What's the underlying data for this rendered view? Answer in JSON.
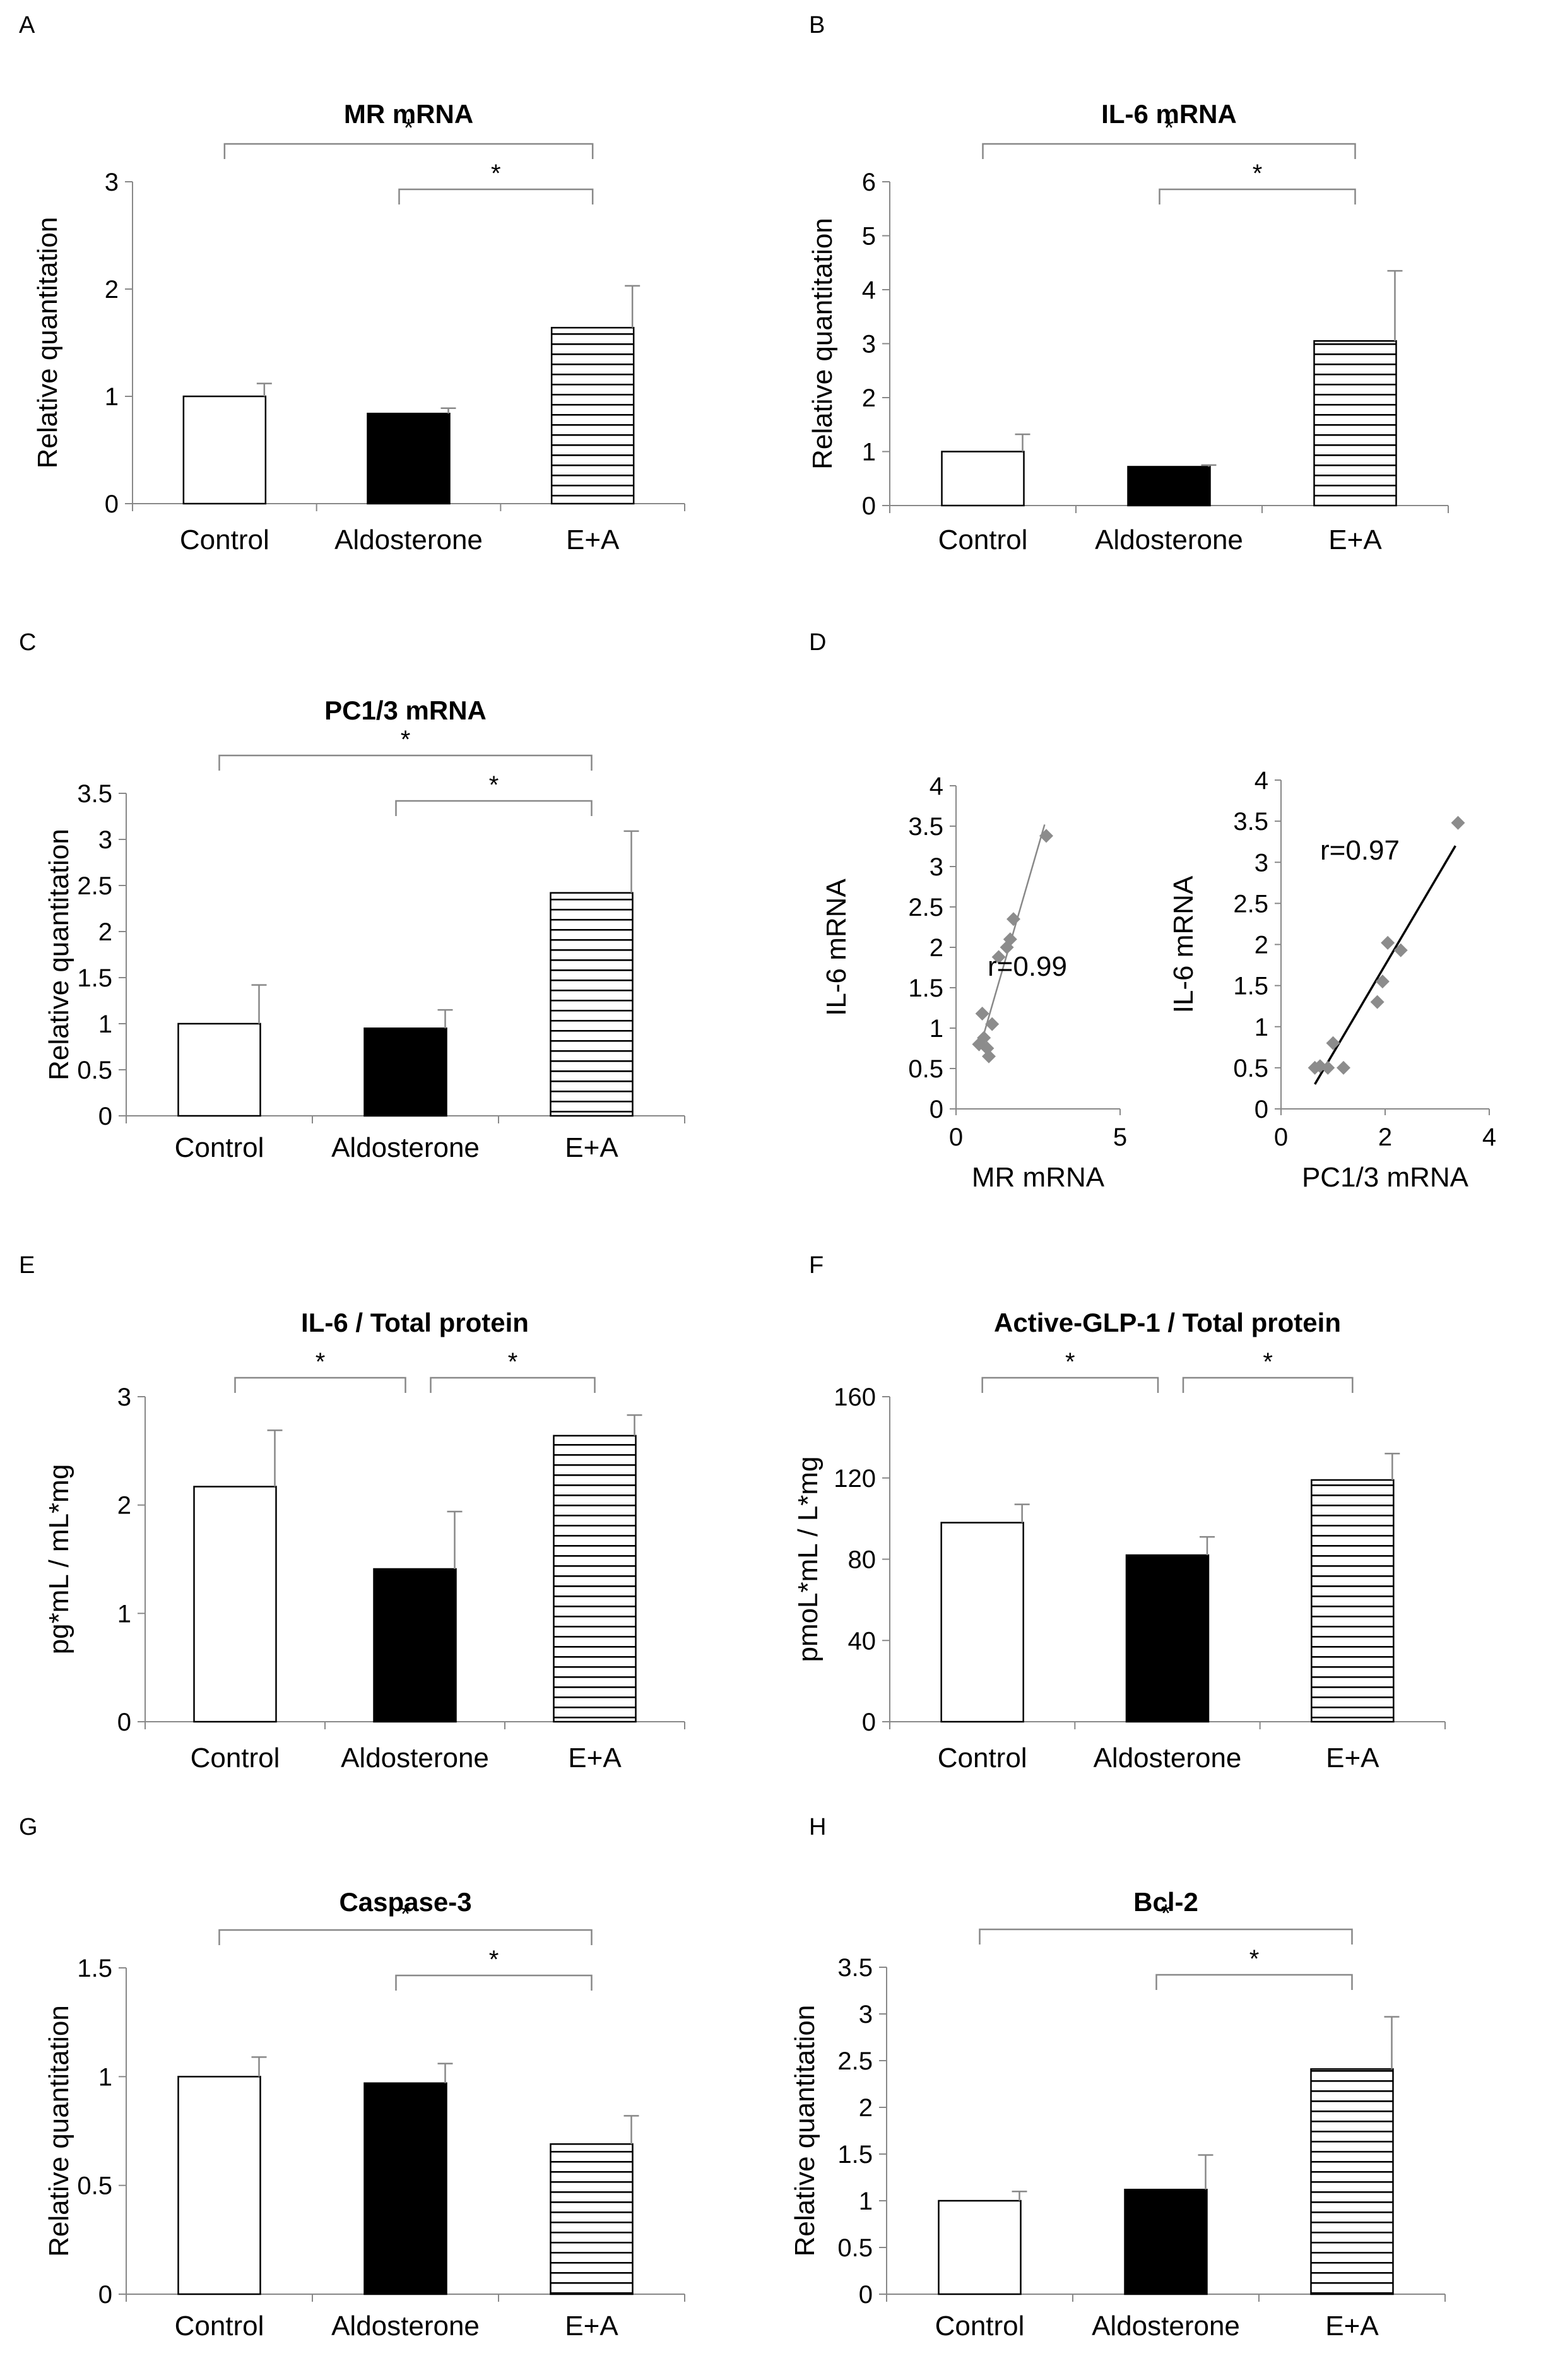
{
  "figure": {
    "panel_letters": [
      "A",
      "B",
      "C",
      "D",
      "E",
      "F",
      "G",
      "H"
    ]
  },
  "colors": {
    "control": "#ffffff",
    "aldosterone": "#000000",
    "ea_stripe": "#000000",
    "axis": "#888888",
    "marker": "#8c8c8c",
    "fit_line_d1": "#888888",
    "fit_line_d2": "#000000"
  },
  "chart_data": [
    {
      "id": "A",
      "type": "bar",
      "title": "MR mRNA",
      "ylabel": "Relative quantitation",
      "categories": [
        "Control",
        "Aldosterone",
        "E+A"
      ],
      "values": [
        1.0,
        0.84,
        1.64
      ],
      "errors": [
        0.12,
        0.05,
        0.39
      ],
      "ylim": [
        0,
        3
      ],
      "yticks": [
        0,
        1,
        2,
        3
      ],
      "ytick_labels": [
        "0",
        "1",
        "2",
        "3"
      ],
      "significance": [
        {
          "from": 0,
          "to": 2,
          "label": "*"
        },
        {
          "from": 1,
          "to": 2,
          "label": "*"
        }
      ]
    },
    {
      "id": "B",
      "type": "bar",
      "title": "IL-6 mRNA",
      "ylabel": "Relative quantitation",
      "categories": [
        "Control",
        "Aldosterone",
        "E+A"
      ],
      "values": [
        1.0,
        0.72,
        3.05
      ],
      "errors": [
        0.32,
        0.03,
        1.3
      ],
      "ylim": [
        0,
        6
      ],
      "yticks": [
        0,
        1,
        2,
        3,
        4,
        5,
        6
      ],
      "ytick_labels": [
        "0",
        "1",
        "2",
        "3",
        "4",
        "5",
        "6"
      ],
      "significance": [
        {
          "from": 0,
          "to": 2,
          "label": "*"
        },
        {
          "from": 1,
          "to": 2,
          "label": "*"
        }
      ]
    },
    {
      "id": "C",
      "type": "bar",
      "title": "PC1/3 mRNA",
      "ylabel": "Relative quantitation",
      "categories": [
        "Control",
        "Aldosterone",
        "E+A"
      ],
      "values": [
        1.0,
        0.95,
        2.42
      ],
      "errors": [
        0.42,
        0.2,
        0.67
      ],
      "ylim": [
        0,
        3.5
      ],
      "yticks": [
        0,
        0.5,
        1,
        1.5,
        2,
        2.5,
        3,
        3.5
      ],
      "ytick_labels": [
        "0",
        "0.5",
        "1",
        "1.5",
        "2",
        "2.5",
        "3",
        "3.5"
      ],
      "significance": [
        {
          "from": 0,
          "to": 2,
          "label": "*"
        },
        {
          "from": 1,
          "to": 2,
          "label": "*"
        }
      ]
    },
    {
      "id": "D1",
      "type": "scatter",
      "xlabel": "MR mRNA",
      "ylabel": "IL-6 mRNA",
      "xlim": [
        0,
        5
      ],
      "ylim": [
        0,
        4
      ],
      "xticks": [
        0,
        5
      ],
      "xtick_labels": [
        "0",
        "5"
      ],
      "yticks": [
        0,
        0.5,
        1,
        1.5,
        2,
        2.5,
        3,
        3.5,
        4
      ],
      "ytick_labels": [
        "0",
        "0.5",
        "1",
        "1.5",
        "2",
        "2.5",
        "3",
        "3.5",
        "4"
      ],
      "points": [
        [
          0.7,
          0.8
        ],
        [
          0.8,
          1.18
        ],
        [
          0.85,
          0.88
        ],
        [
          0.95,
          0.75
        ],
        [
          1.0,
          0.65
        ],
        [
          1.1,
          1.05
        ],
        [
          1.3,
          1.88
        ],
        [
          1.55,
          2.0
        ],
        [
          1.65,
          2.1
        ],
        [
          1.75,
          2.35
        ],
        [
          2.75,
          3.38
        ]
      ],
      "fit_line": [
        [
          0.7,
          0.72
        ],
        [
          2.7,
          3.52
        ]
      ],
      "annotation": "r=0.99"
    },
    {
      "id": "D2",
      "type": "scatter",
      "xlabel": "PC1/3 mRNA",
      "ylabel": "IL-6 mRNA",
      "xlim": [
        0,
        4
      ],
      "ylim": [
        0,
        4
      ],
      "xticks": [
        0,
        2,
        4
      ],
      "xtick_labels": [
        "0",
        "2",
        "4"
      ],
      "yticks": [
        0,
        0.5,
        1,
        1.5,
        2,
        2.5,
        3,
        3.5,
        4
      ],
      "ytick_labels": [
        "0",
        "0.5",
        "1",
        "1.5",
        "2",
        "2.5",
        "3",
        "3.5",
        "4"
      ],
      "points": [
        [
          0.65,
          0.5
        ],
        [
          0.75,
          0.52
        ],
        [
          0.9,
          0.5
        ],
        [
          1.0,
          0.8
        ],
        [
          1.2,
          0.5
        ],
        [
          1.85,
          1.3
        ],
        [
          1.95,
          1.55
        ],
        [
          2.05,
          2.02
        ],
        [
          2.3,
          1.93
        ],
        [
          3.4,
          3.48
        ]
      ],
      "fit_line": [
        [
          0.65,
          0.3
        ],
        [
          3.35,
          3.2
        ]
      ],
      "annotation": "r=0.97"
    },
    {
      "id": "E",
      "type": "bar",
      "title": "IL-6 / Total protein",
      "ylabel": "pg*mL / mL*mg",
      "categories": [
        "Control",
        "Aldosterone",
        "E+A"
      ],
      "values": [
        2.17,
        1.41,
        2.64
      ],
      "errors": [
        0.52,
        0.53,
        0.19
      ],
      "ylim": [
        0,
        3
      ],
      "yticks": [
        0,
        1,
        2,
        3
      ],
      "ytick_labels": [
        "0",
        "1",
        "2",
        "3"
      ],
      "significance": [
        {
          "from": 0,
          "to": 1,
          "label": "*"
        },
        {
          "from": 1,
          "to": 2,
          "label": "*"
        }
      ]
    },
    {
      "id": "F",
      "type": "bar",
      "title": "Active-GLP-1  / Total protein",
      "ylabel": "pmoL*mL / L*mg",
      "categories": [
        "Control",
        "Aldosterone",
        "E+A"
      ],
      "values": [
        98,
        82,
        119
      ],
      "errors": [
        9,
        9,
        13
      ],
      "ylim": [
        0,
        160
      ],
      "yticks": [
        0,
        40,
        80,
        120,
        160
      ],
      "ytick_labels": [
        "0",
        "40",
        "80",
        "120",
        "160"
      ],
      "significance": [
        {
          "from": 0,
          "to": 1,
          "label": "*"
        },
        {
          "from": 1,
          "to": 2,
          "label": "*"
        }
      ]
    },
    {
      "id": "G",
      "type": "bar",
      "title": "Caspase-3",
      "ylabel": "Relative quantitation",
      "categories": [
        "Control",
        "Aldosterone",
        "E+A"
      ],
      "values": [
        1.0,
        0.97,
        0.69
      ],
      "errors": [
        0.09,
        0.09,
        0.13
      ],
      "ylim": [
        0,
        1.5
      ],
      "yticks": [
        0,
        0.5,
        1,
        1.5
      ],
      "ytick_labels": [
        "0",
        "0.5",
        "1",
        "1.5"
      ],
      "significance": [
        {
          "from": 0,
          "to": 2,
          "label": "*"
        },
        {
          "from": 1,
          "to": 2,
          "label": "*"
        }
      ]
    },
    {
      "id": "H",
      "type": "bar",
      "title": "Bcl-2",
      "ylabel": "Relative quantitation",
      "categories": [
        "Control",
        "Aldosterone",
        "E+A"
      ],
      "values": [
        1.0,
        1.12,
        2.41
      ],
      "errors": [
        0.1,
        0.37,
        0.56
      ],
      "ylim": [
        0,
        3.5
      ],
      "yticks": [
        0,
        0.5,
        1,
        1.5,
        2,
        2.5,
        3,
        3.5
      ],
      "ytick_labels": [
        "0",
        "0.5",
        "1",
        "1.5",
        "2",
        "2.5",
        "3",
        "3.5"
      ],
      "significance": [
        {
          "from": 0,
          "to": 2,
          "label": "*"
        },
        {
          "from": 1,
          "to": 2,
          "label": "*"
        }
      ]
    }
  ]
}
